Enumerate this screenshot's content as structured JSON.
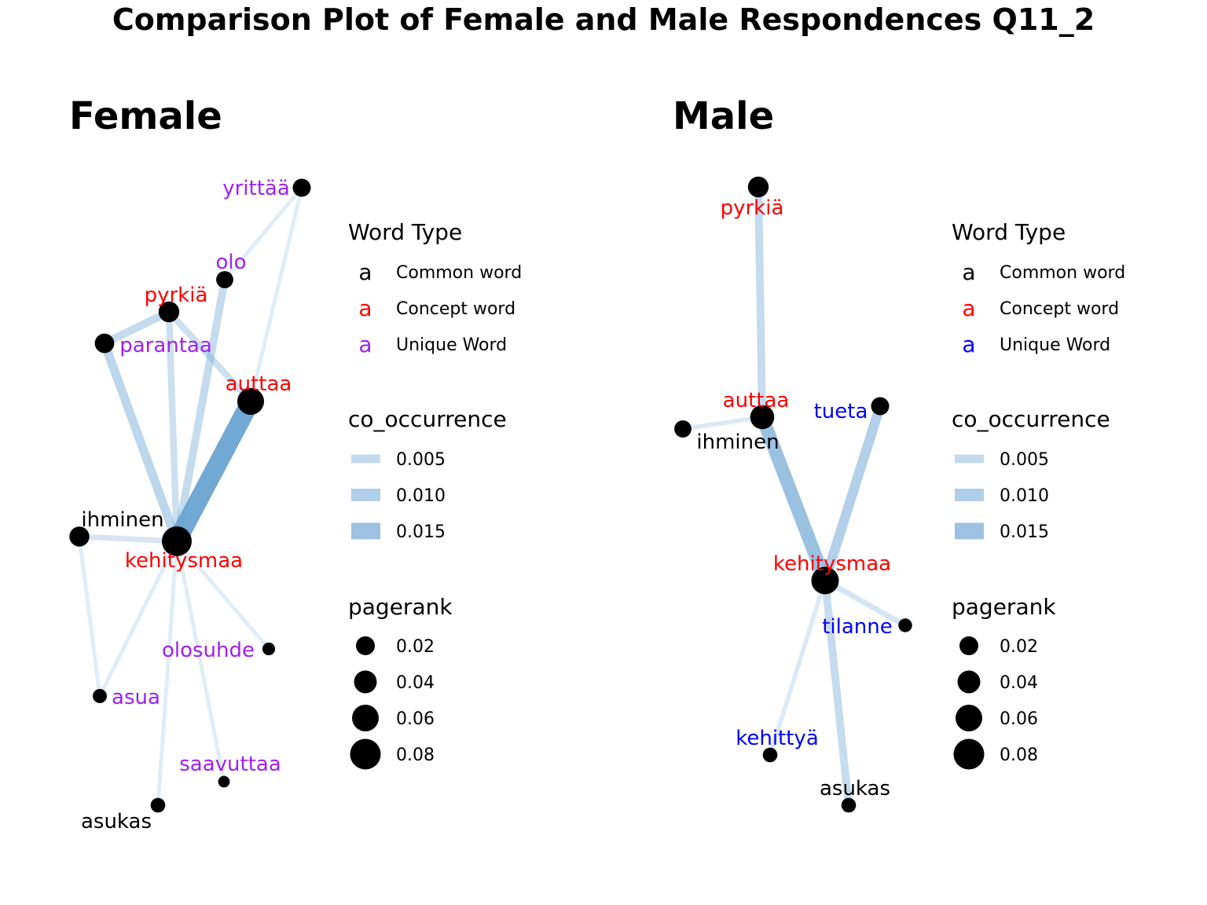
{
  "title": "Comparison Plot of Female and Male Respondences Q11_2",
  "colors": {
    "common": "#000000",
    "concept": "#ff0000",
    "unique_female": "#a020f0",
    "unique_male": "#0000ff",
    "edge": "#6aa3d2",
    "node": "#000000"
  },
  "panels": [
    {
      "id": "female",
      "title": "Female",
      "legend": {
        "word_type": {
          "title": "Word Type",
          "glyph": "a",
          "items": [
            {
              "label": "Common word",
              "type": "common"
            },
            {
              "label": "Concept word",
              "type": "concept"
            },
            {
              "label": "Unique Word",
              "type": "unique"
            }
          ]
        },
        "co_occurrence": {
          "title": "co_occurrence",
          "items": [
            {
              "label": "0.005",
              "value": 0.005
            },
            {
              "label": "0.010",
              "value": 0.01
            },
            {
              "label": "0.015",
              "value": 0.015
            }
          ]
        },
        "pagerank": {
          "title": "pagerank",
          "items": [
            {
              "label": "0.02",
              "value": 0.02
            },
            {
              "label": "0.04",
              "value": 0.04
            },
            {
              "label": "0.06",
              "value": 0.06
            },
            {
              "label": "0.08",
              "value": 0.08
            }
          ]
        }
      },
      "nodes": [
        {
          "id": "yrittää",
          "label": "yrittää",
          "type": "unique",
          "pagerank": 0.02
        },
        {
          "id": "olo",
          "label": "olo",
          "type": "unique",
          "pagerank": 0.017
        },
        {
          "id": "pyrkiä",
          "label": "pyrkiä",
          "type": "concept",
          "pagerank": 0.03
        },
        {
          "id": "parantaa",
          "label": "parantaa",
          "type": "unique",
          "pagerank": 0.025
        },
        {
          "id": "auttaa",
          "label": "auttaa",
          "type": "concept",
          "pagerank": 0.06
        },
        {
          "id": "ihminen",
          "label": "ihminen",
          "type": "common",
          "pagerank": 0.027
        },
        {
          "id": "kehitysmaa",
          "label": "kehitysmaa",
          "type": "concept",
          "pagerank": 0.08
        },
        {
          "id": "olosuhde",
          "label": "olosuhde",
          "type": "unique",
          "pagerank": 0.006
        },
        {
          "id": "asua",
          "label": "asua",
          "type": "unique",
          "pagerank": 0.009
        },
        {
          "id": "saavuttaa",
          "label": "saavuttaa",
          "type": "unique",
          "pagerank": 0.004
        },
        {
          "id": "asukas",
          "label": "asukas",
          "type": "common",
          "pagerank": 0.01
        }
      ],
      "edges": [
        {
          "from": "yrittää",
          "to": "olo",
          "weight": 0.0025
        },
        {
          "from": "yrittää",
          "to": "auttaa",
          "weight": 0.0025
        },
        {
          "from": "olo",
          "to": "kehitysmaa",
          "weight": 0.006
        },
        {
          "from": "pyrkiä",
          "to": "parantaa",
          "weight": 0.006
        },
        {
          "from": "pyrkiä",
          "to": "auttaa",
          "weight": 0.005
        },
        {
          "from": "pyrkiä",
          "to": "kehitysmaa",
          "weight": 0.005
        },
        {
          "from": "parantaa",
          "to": "kehitysmaa",
          "weight": 0.007
        },
        {
          "from": "auttaa",
          "to": "kehitysmaa",
          "weight": 0.016
        },
        {
          "from": "ihminen",
          "to": "kehitysmaa",
          "weight": 0.004
        },
        {
          "from": "ihminen",
          "to": "asua",
          "weight": 0.0025
        },
        {
          "from": "kehitysmaa",
          "to": "olosuhde",
          "weight": 0.0025
        },
        {
          "from": "kehitysmaa",
          "to": "asua",
          "weight": 0.0025
        },
        {
          "from": "kehitysmaa",
          "to": "saavuttaa",
          "weight": 0.0025
        },
        {
          "from": "kehitysmaa",
          "to": "asukas",
          "weight": 0.0025
        }
      ]
    },
    {
      "id": "male",
      "title": "Male",
      "legend": {
        "word_type": {
          "title": "Word Type",
          "glyph": "a",
          "items": [
            {
              "label": "Common word",
              "type": "common"
            },
            {
              "label": "Concept word",
              "type": "concept"
            },
            {
              "label": "Unique Word",
              "type": "unique"
            }
          ]
        },
        "co_occurrence": {
          "title": "co_occurrence",
          "items": [
            {
              "label": "0.005",
              "value": 0.005
            },
            {
              "label": "0.010",
              "value": 0.01
            },
            {
              "label": "0.015",
              "value": 0.015
            }
          ]
        },
        "pagerank": {
          "title": "pagerank",
          "items": [
            {
              "label": "0.02",
              "value": 0.02
            },
            {
              "label": "0.04",
              "value": 0.04
            },
            {
              "label": "0.06",
              "value": 0.06
            },
            {
              "label": "0.08",
              "value": 0.08
            }
          ]
        }
      },
      "nodes": [
        {
          "id": "pyrkiä",
          "label": "pyrkiä",
          "type": "concept",
          "pagerank": 0.03
        },
        {
          "id": "auttaa",
          "label": "auttaa",
          "type": "concept",
          "pagerank": 0.045
        },
        {
          "id": "ihminen",
          "label": "ihminen",
          "type": "common",
          "pagerank": 0.017
        },
        {
          "id": "tueta",
          "label": "tueta",
          "type": "unique",
          "pagerank": 0.02
        },
        {
          "id": "kehitysmaa",
          "label": "kehitysmaa",
          "type": "concept",
          "pagerank": 0.065
        },
        {
          "id": "tilanne",
          "label": "tilanne",
          "type": "unique",
          "pagerank": 0.008
        },
        {
          "id": "kehittyä",
          "label": "kehittyä",
          "type": "unique",
          "pagerank": 0.01
        },
        {
          "id": "asukas",
          "label": "asukas",
          "type": "common",
          "pagerank": 0.01
        }
      ],
      "edges": [
        {
          "from": "pyrkiä",
          "to": "auttaa",
          "weight": 0.006
        },
        {
          "from": "ihminen",
          "to": "auttaa",
          "weight": 0.003
        },
        {
          "from": "auttaa",
          "to": "kehitysmaa",
          "weight": 0.011
        },
        {
          "from": "tueta",
          "to": "kehitysmaa",
          "weight": 0.008
        },
        {
          "from": "kehitysmaa",
          "to": "tilanne",
          "weight": 0.004
        },
        {
          "from": "kehitysmaa",
          "to": "kehittyä",
          "weight": 0.003
        },
        {
          "from": "kehitysmaa",
          "to": "asukas",
          "weight": 0.006
        }
      ]
    }
  ]
}
